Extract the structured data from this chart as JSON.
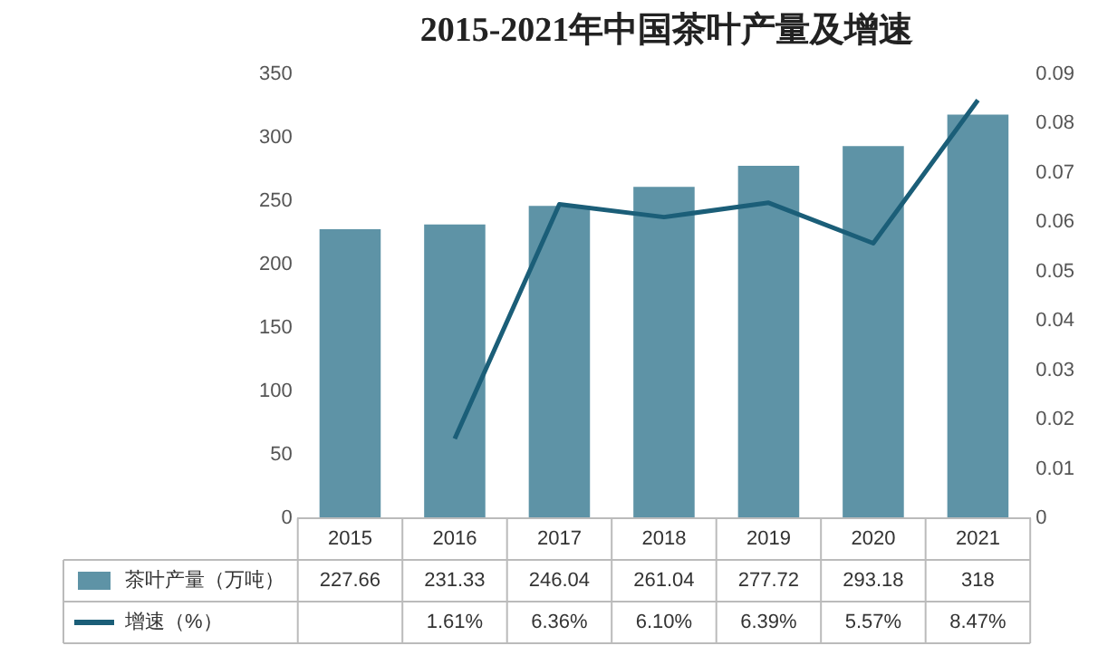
{
  "chart_data": {
    "type": "bar",
    "title": "2015-2021年中国茶叶产量及增速",
    "categories": [
      "2015",
      "2016",
      "2017",
      "2018",
      "2019",
      "2020",
      "2021"
    ],
    "series": [
      {
        "name": "茶叶产量（万吨）",
        "color": "#5e93a6",
        "values": [
          227.66,
          231.33,
          246.04,
          261.04,
          277.72,
          293.18,
          318
        ],
        "value_labels": [
          "227.66",
          "231.33",
          "246.04",
          "261.04",
          "277.72",
          "293.18",
          "318"
        ]
      },
      {
        "name": "增速（%）",
        "type": "line",
        "axis": "y2",
        "color": "#1b5e78",
        "values": [
          null,
          0.0161,
          0.0636,
          0.061,
          0.0639,
          0.0557,
          0.0847
        ],
        "value_labels": [
          null,
          "1.61%",
          "6.36%",
          "6.10%",
          "6.39%",
          "5.57%",
          "8.47%"
        ]
      }
    ],
    "ylim": [
      0,
      350
    ],
    "yticks": [
      0,
      50,
      100,
      150,
      200,
      250,
      300,
      350
    ],
    "y2lim": [
      0,
      0.09
    ],
    "y2ticks": [
      0,
      0.01,
      0.02,
      0.03,
      0.04,
      0.05,
      0.06,
      0.07,
      0.08,
      0.09
    ],
    "marker": "none",
    "line_style": "solid",
    "legend": "bottom"
  }
}
